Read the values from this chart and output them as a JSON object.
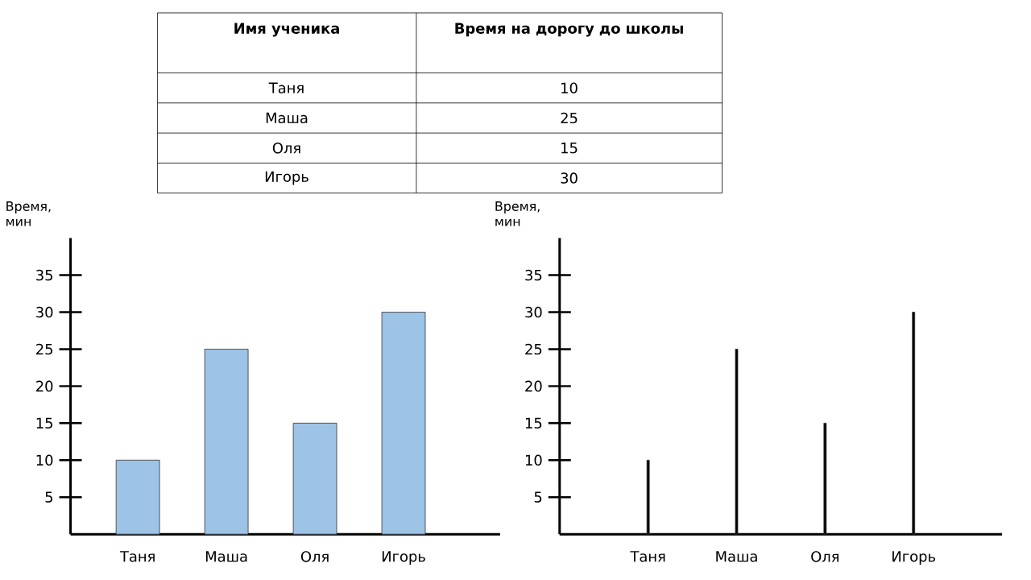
{
  "chart_data": [
    {
      "type": "other",
      "xlabel": "Имя ученика",
      "ylabel": "Время на дорогу до школы",
      "categories": [
        "Таня",
        "Маша",
        "Оля",
        "Игорь"
      ],
      "values": [
        10,
        25,
        15,
        30
      ],
      "data_labels": true
    },
    {
      "type": "bar",
      "ylabel": "Время, мин",
      "categories": [
        "Таня",
        "Маша",
        "Оля",
        "Игорь"
      ],
      "values": [
        10,
        25,
        15,
        30
      ],
      "color": "#9dc3e6",
      "ylim": [
        0,
        40
      ],
      "yticks": [
        5,
        10,
        15,
        20,
        25,
        30,
        35
      ]
    },
    {
      "type": "bar",
      "ylabel": "Время, мин",
      "categories": [
        "Таня",
        "Маша",
        "Оля",
        "Игорь"
      ],
      "values": [
        10,
        25,
        15,
        30
      ],
      "color": "#000000",
      "ylim": [
        0,
        40
      ],
      "yticks": [
        5,
        10,
        15,
        20,
        25,
        30,
        35
      ]
    }
  ]
}
